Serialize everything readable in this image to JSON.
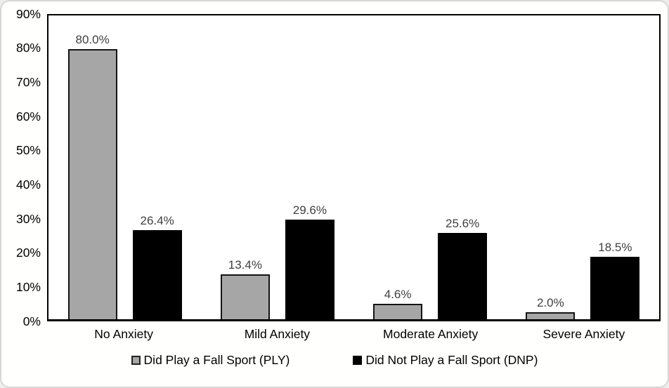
{
  "chart_data": {
    "type": "bar",
    "title": "",
    "xlabel": "",
    "ylabel": "",
    "categories": [
      "No Anxiety",
      "Mild Anxiety",
      "Moderate Anxiety",
      "Severe Anxiety"
    ],
    "series": [
      {
        "name": "Did Play a Fall Sport (PLY)",
        "slug": "ply",
        "color": "#a6a6a6",
        "border_color": "#141414",
        "values": [
          80.0,
          13.4,
          4.6,
          2.0
        ],
        "labels": [
          "80.0%",
          "13.4%",
          "4.6%",
          "2.0%"
        ]
      },
      {
        "name": "Did Not Play a Fall Sport (DNP)",
        "slug": "dnp",
        "color": "#000000",
        "border_color": "#000000",
        "values": [
          26.4,
          29.6,
          25.6,
          18.5
        ],
        "labels": [
          "26.4%",
          "29.6%",
          "25.6%",
          "18.5%"
        ]
      }
    ],
    "ylim": [
      0,
      90
    ],
    "ytick_step": 10,
    "ytick_labels": [
      "0%",
      "10%",
      "20%",
      "30%",
      "40%",
      "50%",
      "60%",
      "70%",
      "80%",
      "90%"
    ],
    "grid": false,
    "legend_position": "bottom",
    "value_label_color": "#404040",
    "axis_text_color": "#000000"
  }
}
